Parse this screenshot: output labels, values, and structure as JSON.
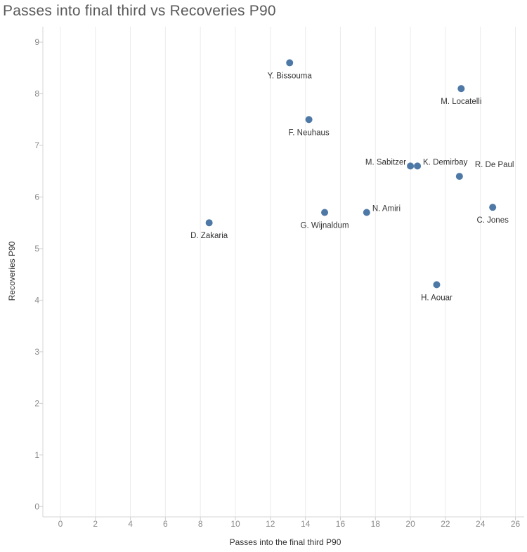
{
  "chart_data": {
    "type": "scatter",
    "title": "Passes into final third vs Recoveries P90",
    "xlabel": "Passes into the final third P90",
    "ylabel": "Recoveries P90",
    "xlim": [
      -1,
      26.5
    ],
    "ylim": [
      -0.2,
      9.3
    ],
    "xticks": [
      0,
      2,
      4,
      6,
      8,
      10,
      12,
      14,
      16,
      18,
      20,
      22,
      24,
      26
    ],
    "yticks": [
      0,
      1,
      2,
      3,
      4,
      5,
      6,
      7,
      8,
      9
    ],
    "grid": true,
    "marker_color": "#4e79a7",
    "points": [
      {
        "name": "Y. Bissouma",
        "x": 13.1,
        "y": 8.6,
        "label_pos": "below"
      },
      {
        "name": "M. Locatelli",
        "x": 22.9,
        "y": 8.1,
        "label_pos": "below"
      },
      {
        "name": "F. Neuhaus",
        "x": 14.2,
        "y": 7.5,
        "label_pos": "below"
      },
      {
        "name": "M. Sabitzer",
        "x": 20.0,
        "y": 6.6,
        "label_pos": "left"
      },
      {
        "name": "K. Demirbay",
        "x": 20.4,
        "y": 6.6,
        "label_pos": "right"
      },
      {
        "name": "R. De Paul",
        "x": 22.8,
        "y": 6.4,
        "label_pos": "above-right"
      },
      {
        "name": "C. Jones",
        "x": 24.7,
        "y": 5.8,
        "label_pos": "below"
      },
      {
        "name": "N. Amiri",
        "x": 17.5,
        "y": 5.7,
        "label_pos": "right"
      },
      {
        "name": "G. Wijnaldum",
        "x": 15.1,
        "y": 5.7,
        "label_pos": "below"
      },
      {
        "name": "D. Zakaria",
        "x": 8.5,
        "y": 5.5,
        "label_pos": "below"
      },
      {
        "name": "H. Aouar",
        "x": 21.5,
        "y": 4.3,
        "label_pos": "below"
      }
    ]
  }
}
